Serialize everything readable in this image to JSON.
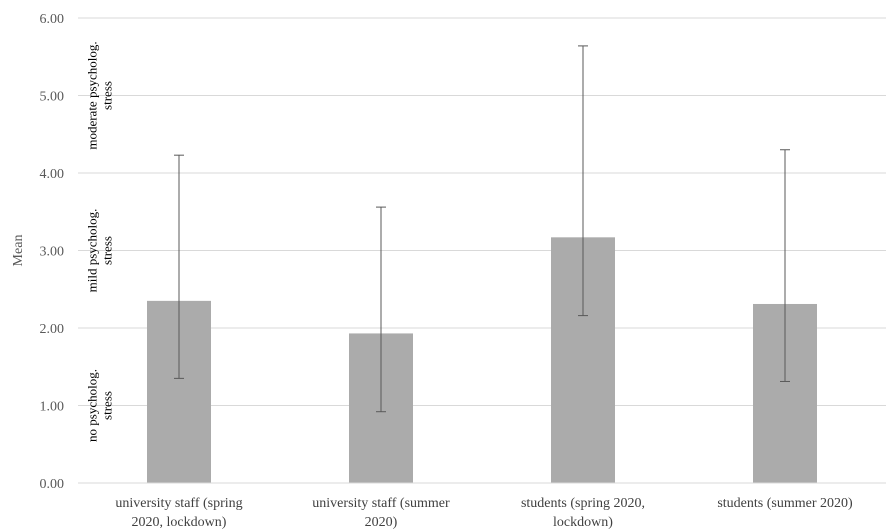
{
  "chart_data": {
    "type": "bar",
    "title": "",
    "xlabel": "",
    "ylabel": "Mean",
    "ylim": [
      0,
      6
    ],
    "yticks": [
      "0.00",
      "1.00",
      "2.00",
      "3.00",
      "4.00",
      "5.00",
      "6.00"
    ],
    "categories": [
      [
        "university staff (spring",
        "2020, lockdown)"
      ],
      [
        "university staff (summer",
        "2020)"
      ],
      [
        "students (spring 2020,",
        "lockdown)"
      ],
      [
        "students (summer 2020)"
      ]
    ],
    "values": [
      2.35,
      1.93,
      3.17,
      2.31
    ],
    "error_low": [
      1.35,
      0.92,
      2.16,
      1.31
    ],
    "error_high": [
      4.23,
      3.56,
      5.64,
      4.3
    ],
    "grid": "horizontal",
    "bar_color": "#ababab",
    "error_bar_color": "#595959",
    "bands": [
      {
        "lines": [
          "no psycholog.",
          "stress"
        ],
        "range": [
          0,
          2
        ]
      },
      {
        "lines": [
          "mild psycholog.",
          "stress"
        ],
        "range": [
          2,
          4
        ]
      },
      {
        "lines": [
          "moderate psycholog.",
          "stress"
        ],
        "range": [
          4,
          6
        ]
      }
    ]
  }
}
